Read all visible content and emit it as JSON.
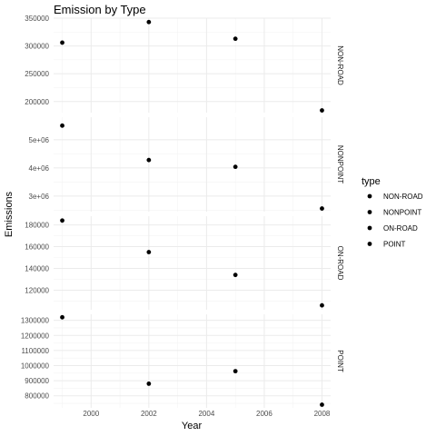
{
  "chart_data": {
    "type": "scatter",
    "title": "Emission by Type",
    "xlabel": "Year",
    "ylabel": "Emissions",
    "x_ticks": [
      2000,
      2002,
      2004,
      2006,
      2008
    ],
    "xlim": [
      1998.7,
      2008.3
    ],
    "facet_direction": "rows",
    "facet_strip_position": "right",
    "shared_x": true,
    "free_y": true,
    "grid": true,
    "point_color": "#000000",
    "legend": {
      "title": "type",
      "position": "right",
      "entries": [
        "NON-ROAD",
        "NONPOINT",
        "ON-ROAD",
        "POINT"
      ]
    },
    "facets": [
      {
        "name": "NON-ROAD",
        "ylim": [
          180000,
          350000
        ],
        "y_ticks": [
          200000,
          250000,
          300000,
          350000
        ],
        "y_tick_labels": [
          "200000",
          "250000",
          "300000",
          "350000"
        ],
        "points": [
          {
            "x": 1999,
            "y": 306000
          },
          {
            "x": 2002,
            "y": 343000
          },
          {
            "x": 2005,
            "y": 313000
          },
          {
            "x": 2008,
            "y": 184000
          }
        ]
      },
      {
        "name": "NONPOINT",
        "ylim": [
          2450000,
          5800000
        ],
        "y_ticks": [
          3000000,
          4000000,
          5000000
        ],
        "y_tick_labels": [
          "3e+06",
          "4e+06",
          "5e+06"
        ],
        "points": [
          {
            "x": 1999,
            "y": 5500000
          },
          {
            "x": 2002,
            "y": 4280000
          },
          {
            "x": 2005,
            "y": 4040000
          },
          {
            "x": 2008,
            "y": 2560000
          }
        ]
      },
      {
        "name": "ON-ROAD",
        "ylim": [
          102000,
          188000
        ],
        "y_ticks": [
          120000,
          140000,
          160000,
          180000
        ],
        "y_tick_labels": [
          "120000",
          "140000",
          "160000",
          "180000"
        ],
        "points": [
          {
            "x": 1999,
            "y": 184000
          },
          {
            "x": 2002,
            "y": 155000
          },
          {
            "x": 2005,
            "y": 134000
          },
          {
            "x": 2008,
            "y": 106000
          }
        ]
      },
      {
        "name": "POINT",
        "ylim": [
          720000,
          1340000
        ],
        "y_ticks": [
          800000,
          900000,
          1000000,
          1100000,
          1200000,
          1300000
        ],
        "y_tick_labels": [
          "800000",
          "900000",
          "1000000",
          "1100000",
          "1200000",
          "1300000"
        ],
        "points": [
          {
            "x": 1999,
            "y": 1320000
          },
          {
            "x": 2002,
            "y": 880000
          },
          {
            "x": 2005,
            "y": 963000
          },
          {
            "x": 2008,
            "y": 741000
          }
        ]
      }
    ]
  }
}
